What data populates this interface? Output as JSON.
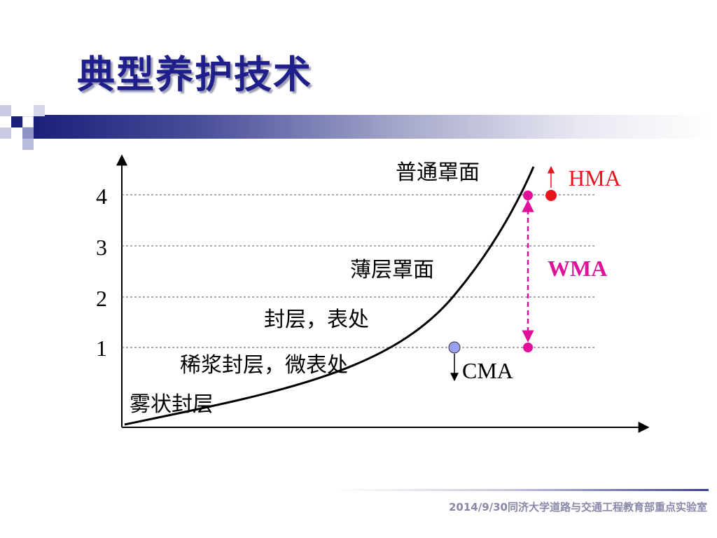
{
  "title": "典型养护技术",
  "diagram": {
    "y_ticks": [
      "1",
      "2",
      "3",
      "4"
    ],
    "curve_labels": {
      "overlay": "普通罩面",
      "thin_overlay": "薄层罩面",
      "seal": "封层，表处",
      "slurry": "稀浆封层，微表处",
      "fog": "雾状封层"
    },
    "mix_labels": {
      "hma": "HMA",
      "wma": "WMA",
      "cma": "CMA"
    },
    "colors": {
      "hma": "#e8141e",
      "wma": "#e0109a",
      "cma": "#9aa0f0",
      "curve": "#000000"
    }
  },
  "footer": "2014/9/30同济大学道路与交通工程教育部重点实验室"
}
